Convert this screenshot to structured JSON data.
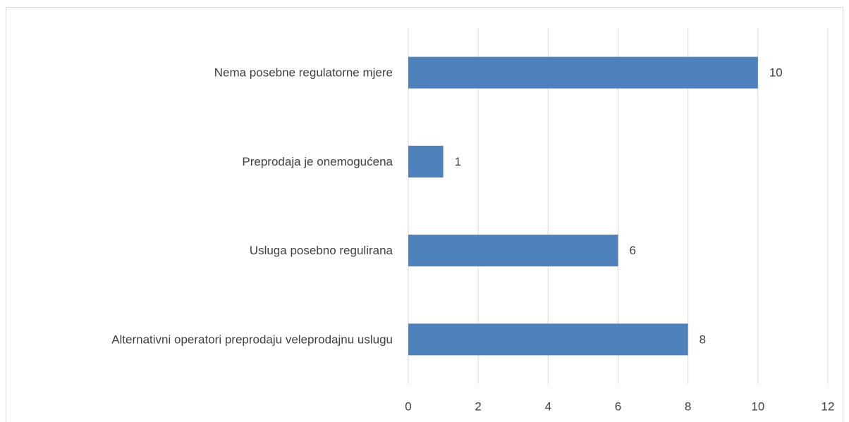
{
  "chart_data": {
    "type": "barh",
    "categories": [
      "Nema posebne regulatorne mjere",
      "Preprodaja je onemogućena",
      "Usluga posebno regulirana",
      "Alternativni operatori preprodaju veleprodajnu uslugu"
    ],
    "values": [
      10,
      1,
      6,
      8
    ],
    "color": "#4f81bd",
    "xlim": [
      0,
      12
    ],
    "xticks": [
      0,
      2,
      4,
      6,
      8,
      10,
      12
    ],
    "grid": true
  }
}
